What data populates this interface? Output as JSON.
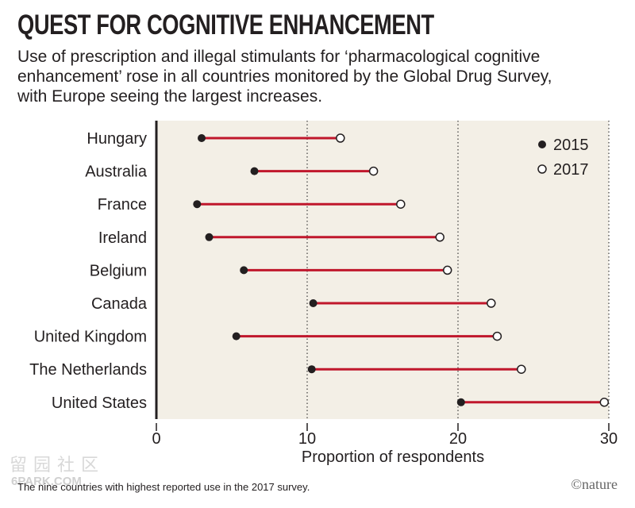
{
  "header": {
    "title": "QUEST FOR COGNITIVE ENHANCEMENT",
    "subtitle": "Use of prescription and illegal stimulants for ‘pharmacological cognitive enhancement’ rose in all countries monitored by the Global Drug Survey, with Europe seeing the largest increases."
  },
  "footer": {
    "footnote": "The nine countries with highest reported use in the 2017 survey.",
    "credit": "©nature"
  },
  "watermark": {
    "chars": "留园社区",
    "site": "6PARK.COM"
  },
  "colors": {
    "plot_bg": "#f3efe6",
    "connector": "#c0172c",
    "marker_2015": "#231f20",
    "marker_2017_fill": "#ffffff",
    "axis": "#231f20"
  },
  "chart_data": {
    "type": "dumbbell",
    "xlabel": "Proportion of respondents",
    "xlim": [
      0,
      30
    ],
    "xticks": [
      0,
      10,
      20,
      30
    ],
    "grid": "dotted vertical at 10, 20, 30",
    "legend_position": "top-right",
    "categories": [
      "Hungary",
      "Australia",
      "France",
      "Ireland",
      "Belgium",
      "Canada",
      "United Kingdom",
      "The Netherlands",
      "United States"
    ],
    "series": [
      {
        "name": "2015",
        "marker": "filled",
        "values": [
          3.0,
          6.5,
          2.7,
          3.5,
          5.8,
          10.4,
          5.3,
          10.3,
          20.2
        ]
      },
      {
        "name": "2017",
        "marker": "open",
        "values": [
          12.2,
          14.4,
          16.2,
          18.8,
          19.3,
          22.2,
          22.6,
          24.2,
          29.7
        ]
      }
    ]
  }
}
